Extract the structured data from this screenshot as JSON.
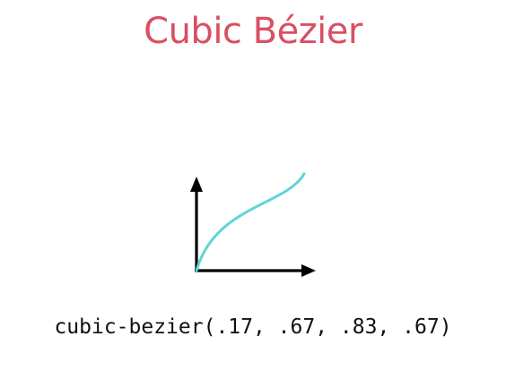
{
  "title": "Cubic Bézier",
  "caption": "cubic-bezier(.17, .67, .83, .67)",
  "easing": {
    "p1": [
      0.17,
      0.67
    ],
    "p2": [
      0.83,
      0.67
    ]
  },
  "colors": {
    "title": "#d94f63",
    "curve": "#5fd5d7",
    "axes": "#000000",
    "caption": "#111111"
  },
  "icons": {
    "x_axis": "arrow-right-icon",
    "y_axis": "arrow-up-icon"
  }
}
